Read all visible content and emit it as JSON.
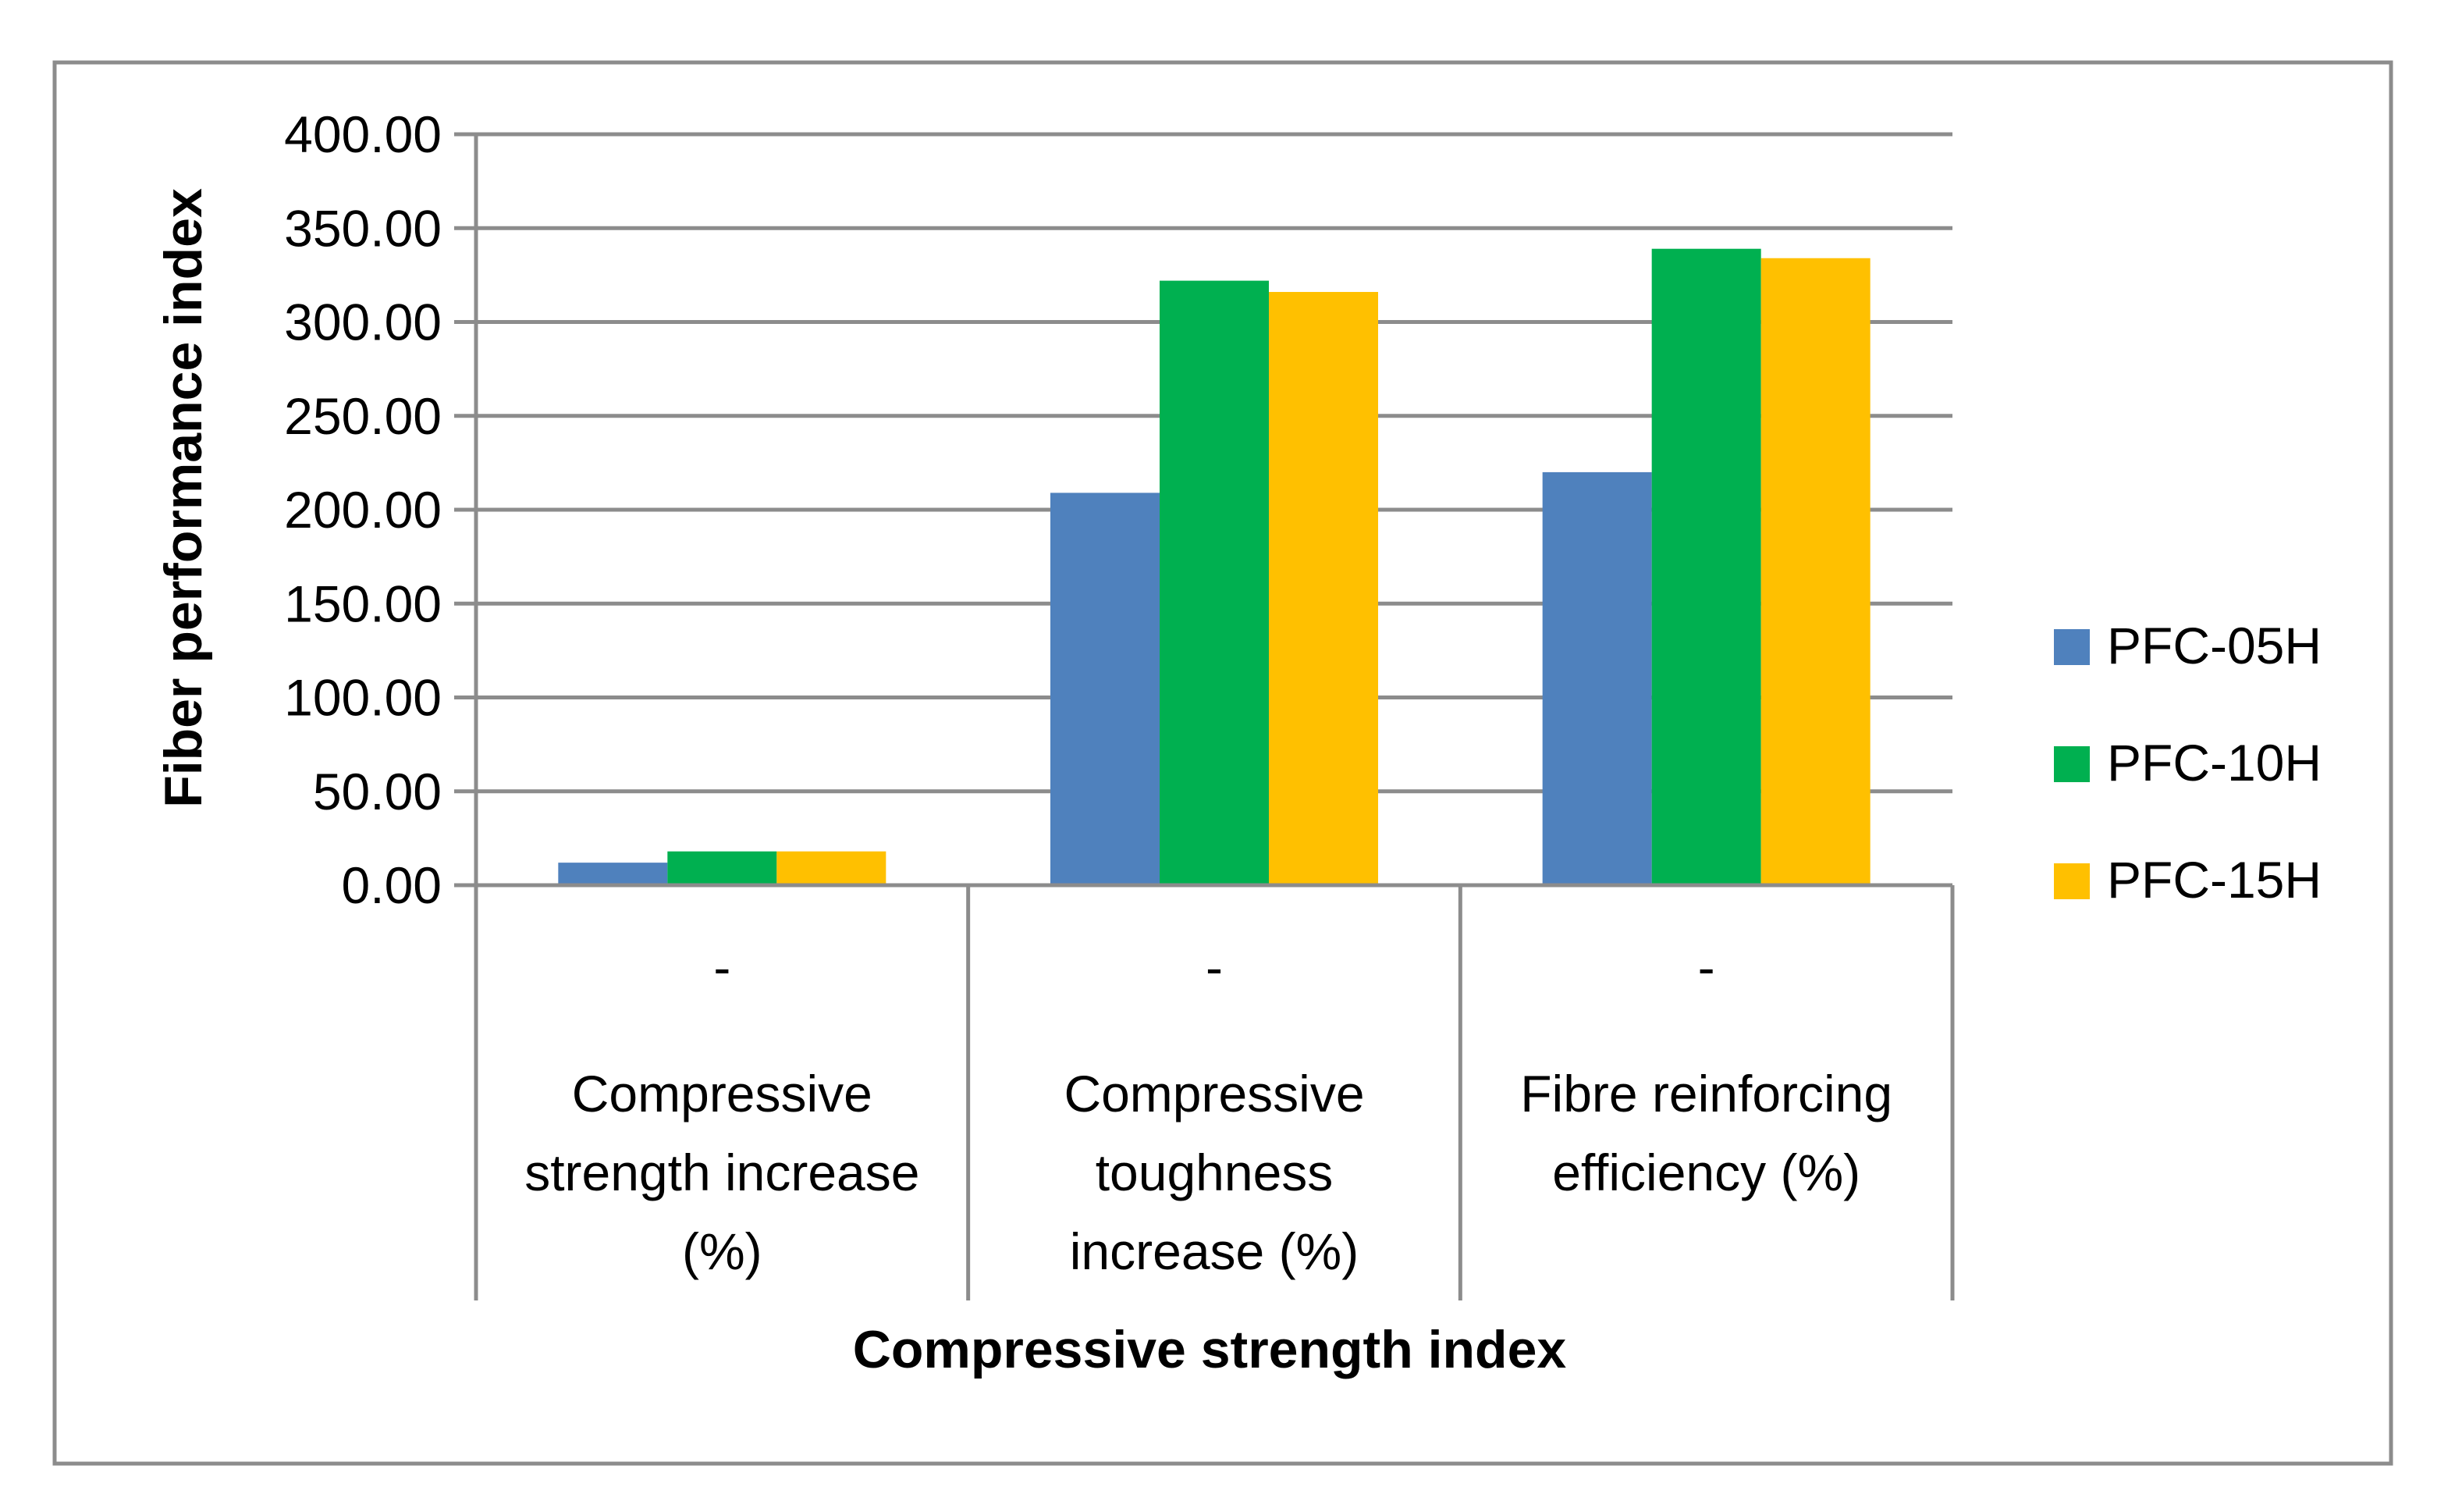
{
  "chart_data": {
    "type": "bar",
    "title": "",
    "xlabel": "Compressive strength index",
    "ylabel": "Fiber performance index",
    "ylim": [
      0,
      400
    ],
    "y_ticks": [
      "0.00",
      "50.00",
      "100.00",
      "150.00",
      "200.00",
      "250.00",
      "300.00",
      "350.00",
      "400.00"
    ],
    "grid": true,
    "legend_position": "right",
    "category_group_label": "-",
    "categories": [
      [
        "Compressive",
        "strength increase",
        "(%)"
      ],
      [
        "Compressive",
        "toughness",
        "increase (%)"
      ],
      [
        "Fibre reinforcing",
        "efficiency (%)"
      ]
    ],
    "series": [
      {
        "name": "PFC-05H",
        "color": "#4f81bd",
        "values": [
          12,
          209,
          220
        ]
      },
      {
        "name": "PFC-10H",
        "color": "#00b050",
        "values": [
          18,
          322,
          339
        ]
      },
      {
        "name": "PFC-15H",
        "color": "#ffc000",
        "values": [
          18,
          316,
          334
        ]
      }
    ]
  }
}
